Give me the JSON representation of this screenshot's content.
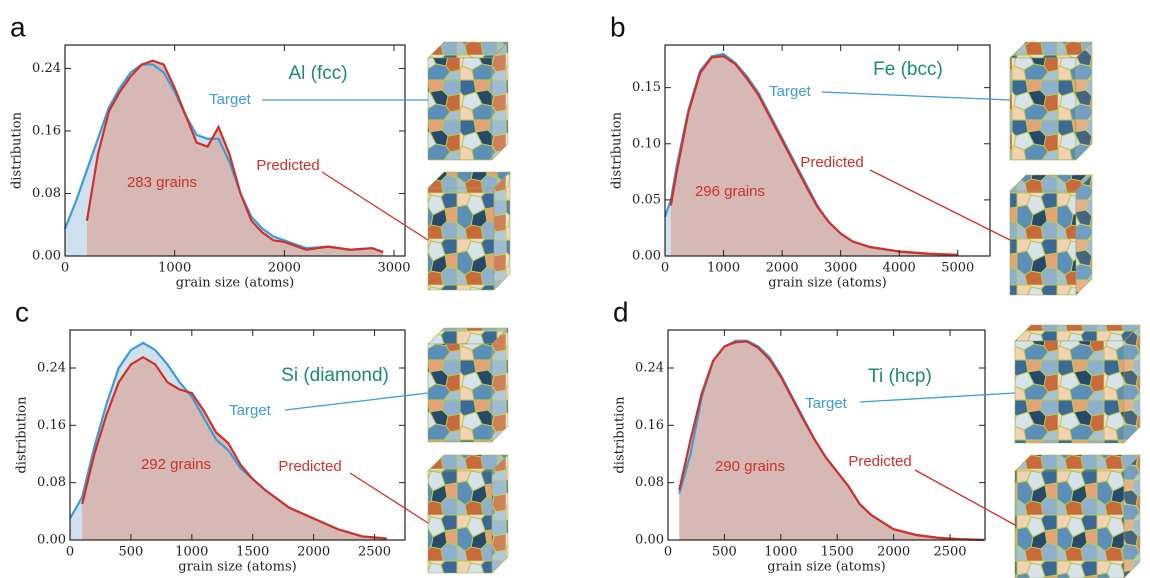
{
  "chart_data": [
    {
      "type": "line",
      "panel": "a",
      "title": "Al (fcc)",
      "annotation": "283 grains",
      "xlabel": "grain size (atoms)",
      "ylabel": "distribution",
      "xlim": [
        0,
        3100
      ],
      "xticks": [
        0,
        1000,
        2000,
        3000
      ],
      "ylim": [
        0,
        0.27
      ],
      "yticks": [
        {
          "value": 0,
          "label": "0.00"
        },
        {
          "value": 0.08,
          "label": "0.08"
        },
        {
          "value": 0.16,
          "label": "0.16"
        },
        {
          "value": 0.24,
          "label": "0.24"
        }
      ],
      "x": [
        0,
        100,
        200,
        300,
        400,
        500,
        600,
        700,
        800,
        900,
        1000,
        1100,
        1200,
        1300,
        1400,
        1500,
        1600,
        1700,
        1800,
        1900,
        2000,
        2200,
        2400,
        2600,
        2800,
        2900
      ],
      "series": [
        {
          "name": "Target",
          "color": "#3d9bd6",
          "values": [
            0.035,
            0.07,
            0.11,
            0.15,
            0.19,
            0.215,
            0.235,
            0.245,
            0.245,
            0.235,
            0.21,
            0.18,
            0.155,
            0.15,
            0.15,
            0.12,
            0.08,
            0.05,
            0.035,
            0.025,
            0.02,
            0.01,
            0.012,
            0.008,
            0.01,
            0.005
          ]
        },
        {
          "name": "Predicted",
          "color": "#cf3129",
          "values": [
            null,
            null,
            0.045,
            0.13,
            0.185,
            0.21,
            0.23,
            0.245,
            0.25,
            0.245,
            0.215,
            0.18,
            0.145,
            0.14,
            0.165,
            0.13,
            0.08,
            0.045,
            0.03,
            0.02,
            0.018,
            0.008,
            0.012,
            0.008,
            0.01,
            0.005
          ]
        }
      ]
    },
    {
      "type": "line",
      "panel": "b",
      "title": "Fe (bcc)",
      "annotation": "296 grains",
      "xlabel": "grain size (atoms)",
      "ylabel": "distribution",
      "xlim": [
        0,
        5550
      ],
      "xticks": [
        0,
        1000,
        2000,
        3000,
        4000,
        5000
      ],
      "ylim": [
        0,
        0.188
      ],
      "yticks": [
        {
          "value": 0,
          "label": "0.00"
        },
        {
          "value": 0.05,
          "label": "0.05"
        },
        {
          "value": 0.1,
          "label": "0.10"
        },
        {
          "value": 0.15,
          "label": "0.15"
        }
      ],
      "x": [
        0,
        100,
        200,
        400,
        600,
        800,
        1000,
        1200,
        1400,
        1600,
        1800,
        2000,
        2200,
        2400,
        2600,
        2800,
        3000,
        3200,
        3500,
        4000,
        4500,
        5000
      ],
      "series": [
        {
          "name": "Target",
          "color": "#3d9bd6",
          "values": [
            0.035,
            0.05,
            0.08,
            0.13,
            0.165,
            0.178,
            0.18,
            0.172,
            0.16,
            0.145,
            0.125,
            0.105,
            0.085,
            0.065,
            0.045,
            0.03,
            0.02,
            0.013,
            0.008,
            0.004,
            0.002,
            0.001
          ]
        },
        {
          "name": "Predicted",
          "color": "#cf3129",
          "values": [
            null,
            0.045,
            0.075,
            0.128,
            0.163,
            0.177,
            0.178,
            0.171,
            0.158,
            0.143,
            0.123,
            0.103,
            0.083,
            0.063,
            0.044,
            0.03,
            0.02,
            0.013,
            0.008,
            0.004,
            0.002,
            0.001
          ]
        }
      ]
    },
    {
      "type": "line",
      "panel": "c",
      "title": "Si (diamond)",
      "annotation": "292 grains",
      "xlabel": "grain size (atoms)",
      "ylabel": "distribution",
      "xlim": [
        0,
        2750
      ],
      "xticks": [
        0,
        500,
        1000,
        1500,
        2000,
        2500
      ],
      "ylim": [
        0,
        0.293
      ],
      "yticks": [
        {
          "value": 0,
          "label": "0.00"
        },
        {
          "value": 0.08,
          "label": "0.08"
        },
        {
          "value": 0.16,
          "label": "0.16"
        },
        {
          "value": 0.24,
          "label": "0.24"
        }
      ],
      "x": [
        0,
        50,
        100,
        200,
        300,
        400,
        500,
        600,
        700,
        800,
        900,
        1000,
        1100,
        1200,
        1300,
        1400,
        1500,
        1600,
        1800,
        2000,
        2200,
        2400,
        2600
      ],
      "series": [
        {
          "name": "Target",
          "color": "#3d9bd6",
          "values": [
            0.03,
            0.045,
            0.06,
            0.13,
            0.19,
            0.24,
            0.265,
            0.275,
            0.265,
            0.245,
            0.22,
            0.2,
            0.17,
            0.14,
            0.125,
            0.1,
            0.085,
            0.07,
            0.045,
            0.03,
            0.015,
            0.005,
            0.002
          ]
        },
        {
          "name": "Predicted",
          "color": "#cf3129",
          "values": [
            null,
            null,
            0.05,
            0.12,
            0.175,
            0.22,
            0.245,
            0.255,
            0.245,
            0.22,
            0.21,
            0.205,
            0.18,
            0.15,
            0.135,
            0.105,
            0.085,
            0.07,
            0.045,
            0.03,
            0.015,
            0.005,
            0.002
          ]
        }
      ]
    },
    {
      "type": "line",
      "panel": "d",
      "title": "Ti (hcp)",
      "annotation": "290 grains",
      "xlabel": "grain size (atoms)",
      "ylabel": "distribution",
      "xlim": [
        0,
        2810
      ],
      "xticks": [
        0,
        500,
        1000,
        1500,
        2000,
        2500
      ],
      "ylim": [
        0,
        0.293
      ],
      "yticks": [
        {
          "value": 0,
          "label": "0.00"
        },
        {
          "value": 0.08,
          "label": "0.08"
        },
        {
          "value": 0.16,
          "label": "0.16"
        },
        {
          "value": 0.24,
          "label": "0.24"
        }
      ],
      "x": [
        100,
        200,
        300,
        400,
        500,
        600,
        700,
        800,
        900,
        1000,
        1100,
        1200,
        1300,
        1400,
        1500,
        1600,
        1700,
        1800,
        2000,
        2200,
        2400,
        2600,
        2800
      ],
      "series": [
        {
          "name": "Target",
          "color": "#3d9bd6",
          "values": [
            0.065,
            0.12,
            0.2,
            0.25,
            0.27,
            0.278,
            0.278,
            0.27,
            0.255,
            0.23,
            0.2,
            0.17,
            0.14,
            0.115,
            0.095,
            0.075,
            0.05,
            0.035,
            0.015,
            0.007,
            0.003,
            0.001,
            0
          ]
        },
        {
          "name": "Predicted",
          "color": "#cf3129",
          "values": [
            0.07,
            0.14,
            0.205,
            0.25,
            0.27,
            0.276,
            0.277,
            0.268,
            0.252,
            0.228,
            0.198,
            0.168,
            0.14,
            0.115,
            0.095,
            0.075,
            0.05,
            0.035,
            0.015,
            0.007,
            0.003,
            0.001,
            0
          ]
        }
      ]
    }
  ]
}
